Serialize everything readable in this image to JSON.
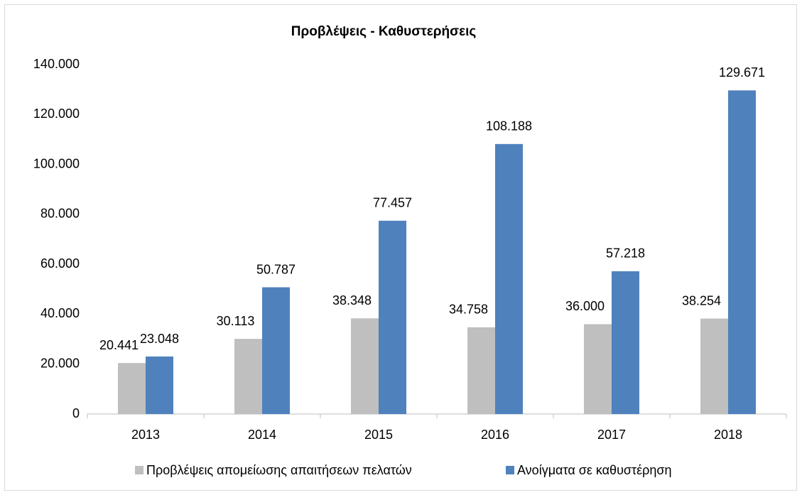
{
  "chart_data": {
    "type": "bar",
    "title": "Προβλέψεις - Καθυστερήσεις",
    "categories": [
      "2013",
      "2014",
      "2015",
      "2016",
      "2017",
      "2018"
    ],
    "series": [
      {
        "name": "Προβλέψεις απομείωσης απαιτήσεων πελατών",
        "color": "#bfbfbf",
        "values": [
          20441,
          30113,
          38348,
          34758,
          36000,
          38254
        ],
        "value_labels": [
          "20.441",
          "30.113",
          "38.348",
          "34.758",
          "36.000",
          "38.254"
        ]
      },
      {
        "name": "Ανοίγματα σε καθυστέρηση",
        "color": "#4f81bd",
        "values": [
          23048,
          50787,
          77457,
          108188,
          57218,
          129671
        ],
        "value_labels": [
          "23.048",
          "50.787",
          "77.457",
          "108.188",
          "57.218",
          "129.671"
        ]
      }
    ],
    "ylim": [
      0,
      140000
    ],
    "yticks": [
      0,
      {
        "value": 20000,
        "label": "20.000"
      },
      {
        "value": 40000,
        "label": "40.000"
      },
      {
        "value": 60000,
        "label": "60.000"
      },
      {
        "value": 80000,
        "label": "80.000"
      },
      {
        "value": 100000,
        "label": "100.000"
      },
      {
        "value": 120000,
        "label": "120.000"
      },
      {
        "value": 140000,
        "label": "140.000"
      }
    ],
    "grid": false,
    "legend": "bottom"
  }
}
